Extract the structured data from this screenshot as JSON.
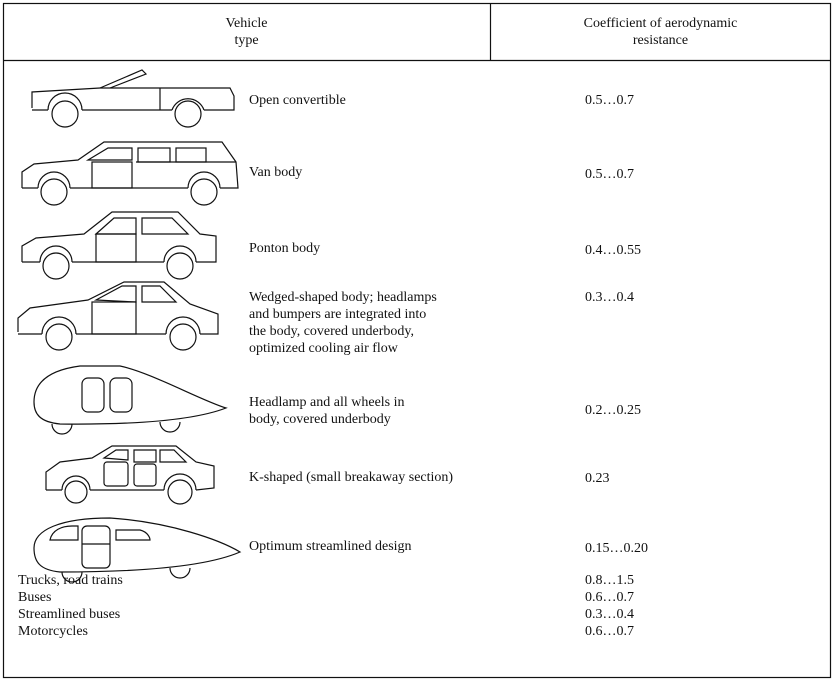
{
  "table": {
    "headers": [
      "Vehicle\ntype",
      "Coefficient of aerodynamic\nresistance"
    ],
    "rows": [
      {
        "description": "Open convertible",
        "coefficient": "0.5…0.7"
      },
      {
        "description": "Van body",
        "coefficient": "0.5…0.7"
      },
      {
        "description": "Ponton body",
        "coefficient": "0.4…0.55"
      },
      {
        "description": "Wedged-shaped body; headlamps\nand bumpers are integrated into\nthe body, covered underbody,\noptimized cooling air flow",
        "coefficient": "0.3…0.4"
      },
      {
        "description": "Headlamp and all wheels in\nbody, covered underbody",
        "coefficient": "0.2…0.25"
      },
      {
        "description": "K-shaped (small breakaway section)",
        "coefficient": "0.23"
      },
      {
        "description": "Optimum streamlined design",
        "coefficient": "0.15…0.20"
      }
    ],
    "other_rows": [
      {
        "description": "Trucks, road trains",
        "coefficient": "0.8…1.5"
      },
      {
        "description": "Buses",
        "coefficient": "0.6…0.7"
      },
      {
        "description": "Streamlined buses",
        "coefficient": "0.3…0.4"
      },
      {
        "description": "Motorcycles",
        "coefficient": "0.6…0.7"
      }
    ]
  }
}
